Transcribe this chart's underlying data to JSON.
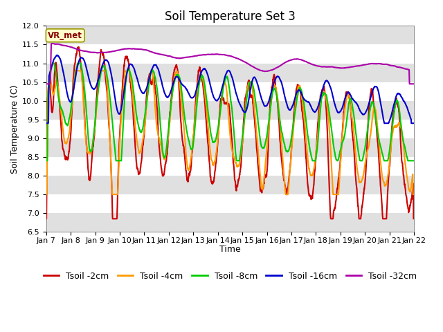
{
  "title": "Soil Temperature Set 3",
  "xlabel": "Time",
  "ylabel": "Soil Temperature (C)",
  "ylim": [
    6.5,
    12.0
  ],
  "yticks": [
    6.5,
    7.0,
    7.5,
    8.0,
    8.5,
    9.0,
    9.5,
    10.0,
    10.5,
    11.0,
    11.5,
    12.0
  ],
  "xtick_labels": [
    "Jan 7",
    "Jan 8",
    "Jan 9",
    "Jan 10",
    "Jan 11",
    "Jan 12",
    "Jan 13",
    "Jan 14",
    "Jan 15",
    "Jan 16",
    "Jan 17",
    "Jan 18",
    "Jan 19",
    "Jan 20",
    "Jan 21",
    "Jan 22"
  ],
  "series_colors": {
    "Tsoil -2cm": "#cc0000",
    "Tsoil -4cm": "#ff9900",
    "Tsoil -8cm": "#00cc00",
    "Tsoil -16cm": "#0000cc",
    "Tsoil -32cm": "#aa00aa"
  },
  "legend_order": [
    "Tsoil -2cm",
    "Tsoil -4cm",
    "Tsoil -8cm",
    "Tsoil -16cm",
    "Tsoil -32cm"
  ],
  "vr_met_label": "VR_met",
  "bg_color": "#ffffff",
  "stripe_white": "#ffffff",
  "stripe_gray": "#e0e0e0",
  "title_fontsize": 12,
  "axis_label_fontsize": 9,
  "tick_fontsize": 8,
  "legend_fontsize": 9,
  "linewidth": 1.5
}
